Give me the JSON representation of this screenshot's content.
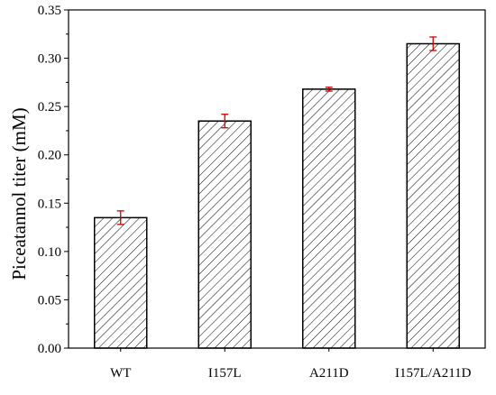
{
  "chart_data": {
    "type": "bar",
    "categories": [
      "WT",
      "I157L",
      "A211D",
      "I157L/A211D"
    ],
    "values": [
      0.135,
      0.235,
      0.268,
      0.315
    ],
    "errors": [
      0.007,
      0.007,
      0.002,
      0.007
    ],
    "ylabel": "Piceatannol titer (mM)",
    "xlabel": "",
    "ylim": [
      0,
      0.35
    ],
    "yticks": [
      "0.00",
      "0.05",
      "0.10",
      "0.15",
      "0.20",
      "0.25",
      "0.30",
      "0.35"
    ],
    "grid": false,
    "legend": "none",
    "colors": {
      "bar_fill": "#ffffff",
      "bar_hatch": "#000000",
      "error_bar": "#cc0000",
      "axis": "#000000"
    }
  }
}
